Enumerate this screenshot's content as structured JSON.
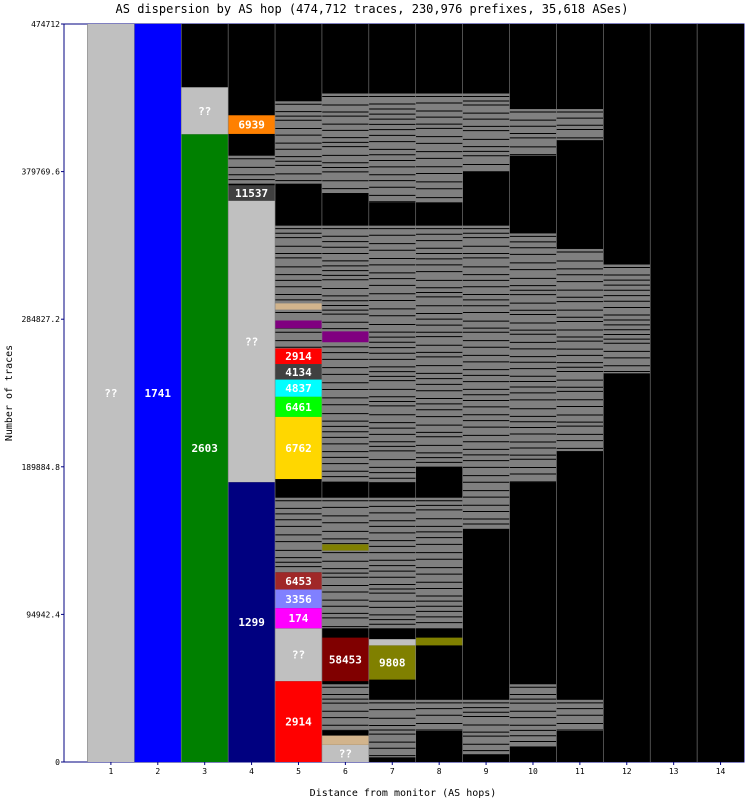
{
  "chart_data": {
    "type": "bar",
    "title": "AS dispersion by AS hop (474,712 traces, 230,976 prefixes, 35,618 ASes)",
    "xlabel": "Distance from monitor (AS hops)",
    "ylabel": "Number of traces",
    "ylim": [
      0,
      474712
    ],
    "yticks": [
      "0",
      "94942.4",
      "189884.8",
      "284827.2",
      "379769.6",
      "474712"
    ],
    "categories": [
      "1",
      "2",
      "3",
      "4",
      "5",
      "6",
      "7",
      "8",
      "9",
      "10",
      "11",
      "12",
      "13",
      "14"
    ],
    "background_color": "#000000",
    "stripe_color": "#808080",
    "segments": [
      {
        "hop": 1,
        "y0": 0,
        "y1": 474712,
        "label": "??",
        "color": "#c0c0c0",
        "text": "#ffffff"
      },
      {
        "hop": 2,
        "y0": 0,
        "y1": 474712,
        "label": "1741",
        "color": "#0000ff",
        "text": "#ffffff"
      },
      {
        "hop": 3,
        "y0": 0,
        "y1": 403800,
        "label": "2603",
        "color": "#008000",
        "text": "#ffffff"
      },
      {
        "hop": 3,
        "y0": 403800,
        "y1": 434000,
        "label": "??",
        "color": "#c0c0c0",
        "text": "#ffffff"
      },
      {
        "hop": 4,
        "y0": 0,
        "y1": 180000,
        "label": "1299",
        "color": "#000080",
        "text": "#ffffff"
      },
      {
        "hop": 4,
        "y0": 180000,
        "y1": 361000,
        "label": "??",
        "color": "#c0c0c0",
        "text": "#ffffff"
      },
      {
        "hop": 4,
        "y0": 361000,
        "y1": 371000,
        "label": "11537",
        "color": "#404040",
        "text": "#ffffff"
      },
      {
        "hop": 4,
        "y0": 404000,
        "y1": 416000,
        "label": "6939",
        "color": "#ff8000",
        "text": "#ffffff"
      },
      {
        "hop": 5,
        "y0": 0,
        "y1": 52000,
        "label": "2914",
        "color": "#ff0000",
        "text": "#ffffff"
      },
      {
        "hop": 5,
        "y0": 52000,
        "y1": 86000,
        "label": "??",
        "color": "#c0c0c0",
        "text": "#ffffff"
      },
      {
        "hop": 5,
        "y0": 86000,
        "y1": 99000,
        "label": "174",
        "color": "#ff00ff",
        "text": "#ffffff"
      },
      {
        "hop": 5,
        "y0": 99000,
        "y1": 111000,
        "label": "3356",
        "color": "#8080ff",
        "text": "#ffffff"
      },
      {
        "hop": 5,
        "y0": 111000,
        "y1": 122000,
        "label": "6453",
        "color": "#a02828",
        "text": "#ffffff"
      },
      {
        "hop": 5,
        "y0": 182000,
        "y1": 222000,
        "label": "6762",
        "color": "#ffd700",
        "text": "#ffffff"
      },
      {
        "hop": 5,
        "y0": 222000,
        "y1": 235000,
        "label": "6461",
        "color": "#00ff00",
        "text": "#ffffff"
      },
      {
        "hop": 5,
        "y0": 235000,
        "y1": 246000,
        "label": "4837",
        "color": "#00ffff",
        "text": "#ffffff"
      },
      {
        "hop": 5,
        "y0": 246000,
        "y1": 256000,
        "label": "4134",
        "color": "#404040",
        "text": "#ffffff"
      },
      {
        "hop": 5,
        "y0": 256000,
        "y1": 266000,
        "label": "2914",
        "color": "#ff0000",
        "text": "#ffffff"
      },
      {
        "hop": 5,
        "y0": 279000,
        "y1": 284000,
        "label": "",
        "color": "#800080",
        "text": "#ffffff"
      },
      {
        "hop": 5,
        "y0": 291000,
        "y1": 295000,
        "label": "",
        "color": "#d2b48c",
        "text": "#ffffff"
      },
      {
        "hop": 6,
        "y0": 0,
        "y1": 11000,
        "label": "??",
        "color": "#c0c0c0",
        "text": "#ffffff"
      },
      {
        "hop": 6,
        "y0": 11000,
        "y1": 17000,
        "label": "",
        "color": "#d2b48c",
        "text": "#ffffff"
      },
      {
        "hop": 6,
        "y0": 52000,
        "y1": 80000,
        "label": "58453",
        "color": "#800000",
        "text": "#ffffff"
      },
      {
        "hop": 6,
        "y0": 270000,
        "y1": 277000,
        "label": "",
        "color": "#800080",
        "text": "#ffffff"
      },
      {
        "hop": 6,
        "y0": 136000,
        "y1": 140000,
        "label": "",
        "color": "#808000",
        "text": "#ffffff"
      },
      {
        "hop": 7,
        "y0": 53000,
        "y1": 75000,
        "label": "9808",
        "color": "#808000",
        "text": "#ffffff"
      },
      {
        "hop": 7,
        "y0": 75000,
        "y1": 79000,
        "label": "",
        "color": "#c0c0c0",
        "text": "#ffffff"
      },
      {
        "hop": 8,
        "y0": 75000,
        "y1": 80000,
        "label": "",
        "color": "#808000",
        "text": "#ffffff"
      }
    ],
    "gray_bands": [
      {
        "hop": 4,
        "y0": 340000,
        "y1": 365000
      },
      {
        "hop": 4,
        "y0": 372000,
        "y1": 390000
      },
      {
        "hop": 5,
        "y0": 188000,
        "y1": 345000
      },
      {
        "hop": 5,
        "y0": 122000,
        "y1": 170000
      },
      {
        "hop": 5,
        "y0": 372000,
        "y1": 425000
      },
      {
        "hop": 6,
        "y0": 180000,
        "y1": 345000
      },
      {
        "hop": 6,
        "y0": 20000,
        "y1": 50000
      },
      {
        "hop": 6,
        "y0": 86000,
        "y1": 170000
      },
      {
        "hop": 6,
        "y0": 366000,
        "y1": 430000
      },
      {
        "hop": 7,
        "y0": 180000,
        "y1": 345000
      },
      {
        "hop": 7,
        "y0": 3000,
        "y1": 40000
      },
      {
        "hop": 7,
        "y0": 86000,
        "y1": 170000
      },
      {
        "hop": 7,
        "y0": 360000,
        "y1": 430000
      },
      {
        "hop": 8,
        "y0": 190000,
        "y1": 345000
      },
      {
        "hop": 8,
        "y0": 20000,
        "y1": 40000
      },
      {
        "hop": 8,
        "y0": 86000,
        "y1": 170000
      },
      {
        "hop": 8,
        "y0": 360000,
        "y1": 430000
      },
      {
        "hop": 9,
        "y0": 150000,
        "y1": 345000
      },
      {
        "hop": 9,
        "y0": 5000,
        "y1": 40000
      },
      {
        "hop": 9,
        "y0": 380000,
        "y1": 430000
      },
      {
        "hop": 10,
        "y0": 180000,
        "y1": 340000
      },
      {
        "hop": 10,
        "y0": 10000,
        "y1": 50000
      },
      {
        "hop": 10,
        "y0": 390000,
        "y1": 420000
      },
      {
        "hop": 11,
        "y0": 200000,
        "y1": 330000
      },
      {
        "hop": 11,
        "y0": 20000,
        "y1": 40000
      },
      {
        "hop": 11,
        "y0": 400000,
        "y1": 420000
      },
      {
        "hop": 12,
        "y0": 250000,
        "y1": 320000
      }
    ]
  }
}
